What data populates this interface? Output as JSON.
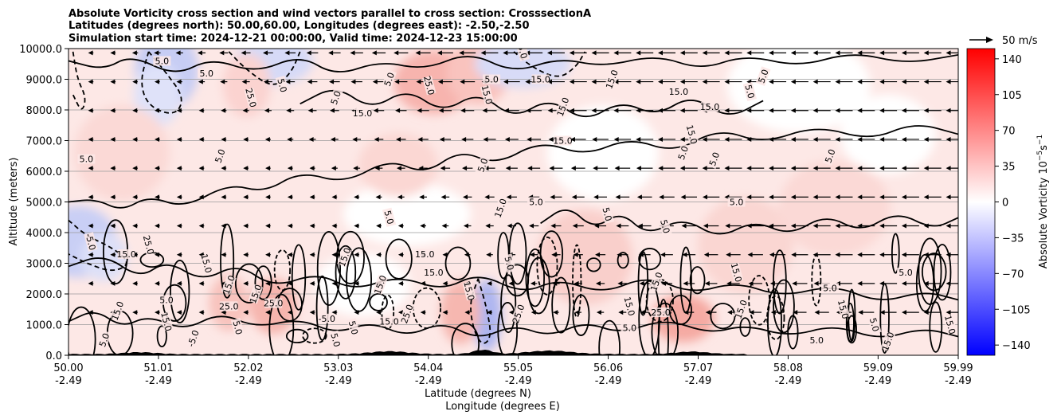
{
  "title": {
    "line1": "Absolute Vorticity cross section and wind vectors parallel to cross section: CrosssectionA",
    "line2": "Latitudes (degrees north): 50.00,60.00, Longitudes (degrees east): -2.50,-2.50",
    "line3": "Simulation start time: 2024-12-21 00:00:00, Valid time: 2024-12-23 15:00:00"
  },
  "chart_data": {
    "type": "heatmap",
    "description_units": "cross section of absolute vorticity with contours and wind vectors",
    "x_ticks": [
      {
        "lat": "50.00",
        "lon": "-2.49"
      },
      {
        "lat": "51.01",
        "lon": "-2.49"
      },
      {
        "lat": "52.02",
        "lon": "-2.49"
      },
      {
        "lat": "53.03",
        "lon": "-2.49"
      },
      {
        "lat": "54.04",
        "lon": "-2.49"
      },
      {
        "lat": "55.05",
        "lon": "-2.49"
      },
      {
        "lat": "56.06",
        "lon": "-2.49"
      },
      {
        "lat": "57.07",
        "lon": "-2.49"
      },
      {
        "lat": "58.08",
        "lon": "-2.49"
      },
      {
        "lat": "59.09",
        "lon": "-2.49"
      },
      {
        "lat": "59.99",
        "lon": "-2.49"
      }
    ],
    "xlim": [
      50.0,
      59.99
    ],
    "xlabel": "Latitude (degrees N)",
    "xlabel2": "Longitude (degrees E)",
    "y_ticks": [
      "0.0",
      "1000.0",
      "2000.0",
      "3000.0",
      "4000.0",
      "5000.0",
      "6000.0",
      "7000.0",
      "8000.0",
      "9000.0",
      "10000.0"
    ],
    "ylim": [
      0,
      10000
    ],
    "ylabel": "Altitude (meters)",
    "grid": "horizontal",
    "colorbar": {
      "label": "Absolute Vorticity 10",
      "label_exponent": "−5",
      "label_unit": "s",
      "label_unit_exponent": "−1",
      "ticks": [
        "140",
        "105",
        "70",
        "35",
        "0",
        "−35",
        "−70",
        "−105",
        "−140"
      ],
      "tick_values": [
        140,
        105,
        70,
        35,
        0,
        -35,
        -70,
        -105,
        -140
      ],
      "range": [
        -150,
        150
      ],
      "colormap": "bwr",
      "color_min": "#0000ff",
      "color_mid": "#ffffff",
      "color_max": "#ff0000"
    },
    "vector_key": {
      "label": "50 m/s"
    },
    "contour_levels": [
      -5.0,
      5.0,
      15.0,
      25.0
    ],
    "contour_labels": [
      {
        "text": "5.0",
        "x": 50.2,
        "y": 6400
      },
      {
        "text": "-5.0",
        "x": 50.25,
        "y": 3700
      },
      {
        "text": "15.0",
        "x": 50.55,
        "y": 1450
      },
      {
        "text": "15.0",
        "x": 50.65,
        "y": 3300
      },
      {
        "text": "25.0",
        "x": 50.9,
        "y": 3600
      },
      {
        "text": "5.0",
        "x": 50.4,
        "y": 500
      },
      {
        "text": "5.0",
        "x": 51.05,
        "y": 9600
      },
      {
        "text": "15.0",
        "x": 51.1,
        "y": 1100
      },
      {
        "text": "-5.0",
        "x": 51.4,
        "y": 550
      },
      {
        "text": "5.0",
        "x": 51.1,
        "y": 1800
      },
      {
        "text": "15.0",
        "x": 51.55,
        "y": 3000
      },
      {
        "text": "5.0",
        "x": 51.7,
        "y": 6500
      },
      {
        "text": "5.0",
        "x": 51.55,
        "y": 9200
      },
      {
        "text": "25.0",
        "x": 52.05,
        "y": 8400
      },
      {
        "text": "15.0",
        "x": 51.8,
        "y": 2300
      },
      {
        "text": "25.0",
        "x": 51.8,
        "y": 1600
      },
      {
        "text": "5.0",
        "x": 51.9,
        "y": 900
      },
      {
        "text": "15.0",
        "x": 52.1,
        "y": 2000
      },
      {
        "text": "25.0",
        "x": 52.3,
        "y": 1700
      },
      {
        "text": "5.0",
        "x": 52.4,
        "y": 8800
      },
      {
        "text": "5.0",
        "x": 53.0,
        "y": 8400
      },
      {
        "text": "-5.0",
        "x": 52.9,
        "y": 1200
      },
      {
        "text": "5.0",
        "x": 53.0,
        "y": 500
      },
      {
        "text": "15.0",
        "x": 53.1,
        "y": 3200
      },
      {
        "text": "15.0",
        "x": 53.3,
        "y": 7900
      },
      {
        "text": "5.0",
        "x": 53.2,
        "y": 900
      },
      {
        "text": "15.0",
        "x": 53.5,
        "y": 2300
      },
      {
        "text": "15.0",
        "x": 53.6,
        "y": 1100
      },
      {
        "text": "5.0",
        "x": 53.6,
        "y": 4500
      },
      {
        "text": "5.0",
        "x": 53.6,
        "y": 9000
      },
      {
        "text": "15.0",
        "x": 54.0,
        "y": 3300
      },
      {
        "text": "25.0",
        "x": 54.05,
        "y": 8800
      },
      {
        "text": "25.0",
        "x": 53.8,
        "y": 1350
      },
      {
        "text": "15.0",
        "x": 54.1,
        "y": 2700
      },
      {
        "text": "15.0",
        "x": 54.5,
        "y": 2100
      },
      {
        "text": "5.0",
        "x": 54.65,
        "y": 6200
      },
      {
        "text": "5.0",
        "x": 54.75,
        "y": 9000
      },
      {
        "text": "15.0",
        "x": 54.7,
        "y": 8500
      },
      {
        "text": "15.0",
        "x": 54.85,
        "y": 4800
      },
      {
        "text": "5.0",
        "x": 55.25,
        "y": 5000
      },
      {
        "text": "5.0",
        "x": 54.95,
        "y": 3000
      },
      {
        "text": "25.0",
        "x": 55.05,
        "y": 1350
      },
      {
        "text": "15.0",
        "x": 55.3,
        "y": 9000
      },
      {
        "text": "5.0",
        "x": 55.1,
        "y": 9900
      },
      {
        "text": "15.0",
        "x": 55.55,
        "y": 8100
      },
      {
        "text": "15.0",
        "x": 55.55,
        "y": 7000
      },
      {
        "text": "5.0",
        "x": 56.05,
        "y": 4600
      },
      {
        "text": "15.0",
        "x": 56.1,
        "y": 9000
      },
      {
        "text": "5.0",
        "x": 56.3,
        "y": 900
      },
      {
        "text": "15.0",
        "x": 56.3,
        "y": 1600
      },
      {
        "text": "15.0",
        "x": 56.6,
        "y": 2400
      },
      {
        "text": "25.0",
        "x": 56.65,
        "y": 1400
      },
      {
        "text": "5.0",
        "x": 56.7,
        "y": 4200
      },
      {
        "text": "5.0",
        "x": 56.9,
        "y": 6600
      },
      {
        "text": "15.0",
        "x": 56.85,
        "y": 8600
      },
      {
        "text": "15.0",
        "x": 57.0,
        "y": 7200
      },
      {
        "text": "5.0",
        "x": 57.25,
        "y": 6400
      },
      {
        "text": "15.0",
        "x": 57.2,
        "y": 8100
      },
      {
        "text": "15.0",
        "x": 57.5,
        "y": 2700
      },
      {
        "text": "15.0",
        "x": 57.55,
        "y": 1500
      },
      {
        "text": "5.0",
        "x": 57.5,
        "y": 5000
      },
      {
        "text": "5.0",
        "x": 57.65,
        "y": 8600
      },
      {
        "text": "5.0",
        "x": 57.8,
        "y": 9100
      },
      {
        "text": "5.0",
        "x": 58.55,
        "y": 2200
      },
      {
        "text": "15.0",
        "x": 58.7,
        "y": 1500
      },
      {
        "text": "5.0",
        "x": 58.55,
        "y": 6500
      },
      {
        "text": "5.0",
        "x": 58.4,
        "y": 500
      },
      {
        "text": "5.0",
        "x": 59.05,
        "y": 1000
      },
      {
        "text": "15.0",
        "x": 59.2,
        "y": 450
      },
      {
        "text": "5.0",
        "x": 59.4,
        "y": 2700
      },
      {
        "text": "15.0",
        "x": 59.9,
        "y": 1000
      }
    ]
  }
}
